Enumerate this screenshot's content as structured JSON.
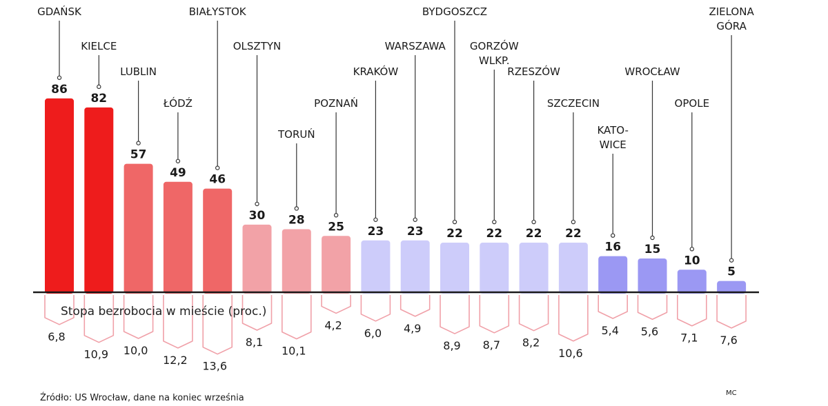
{
  "chart_data": {
    "type": "bar",
    "categories": [
      "GDAŃSK",
      "KIELCE",
      "LUBLIN",
      "ŁÓDŹ",
      "BIAŁYSTOK",
      "OLSZTYN",
      "TORUŃ",
      "POZNAŃ",
      "KRAKÓW",
      "WARSZAWA",
      "BYDGOSZCZ",
      "GORZÓW WLKP.",
      "RZESZÓW",
      "SZCZECIN",
      "KATO-WICE",
      "WROCŁAW",
      "OPOLE",
      "ZIELONA GÓRA"
    ],
    "category_lines": [
      [
        "GDAŃSK"
      ],
      [
        "KIELCE"
      ],
      [
        "LUBLIN"
      ],
      [
        "ŁÓDŹ"
      ],
      [
        "BIAŁYSTOK"
      ],
      [
        "OLSZTYN"
      ],
      [
        "TORUŃ"
      ],
      [
        "POZNAŃ"
      ],
      [
        "KRAKÓW"
      ],
      [
        "WARSZAWA"
      ],
      [
        "BYDGOSZCZ"
      ],
      [
        "GORZÓW",
        "WLKP."
      ],
      [
        "RZESZÓW"
      ],
      [
        "SZCZECIN"
      ],
      [
        "KATO-",
        "WICE"
      ],
      [
        "WROCŁAW"
      ],
      [
        "OPOLE"
      ],
      [
        "ZIELONA",
        "GÓRA"
      ]
    ],
    "series": [
      {
        "values": [
          86,
          82,
          57,
          49,
          46,
          30,
          28,
          25,
          23,
          23,
          22,
          22,
          22,
          22,
          16,
          15,
          10,
          5
        ]
      },
      {
        "values": [
          6.8,
          10.9,
          10.0,
          12.2,
          13.6,
          8.1,
          10.1,
          4.2,
          6.0,
          4.9,
          8.9,
          8.7,
          8.2,
          10.6,
          5.4,
          5.6,
          7.1,
          7.6
        ],
        "labels": [
          "6,8",
          "10,9",
          "10,0",
          "12,2",
          "13,6",
          "8,1",
          "10,1",
          "4,2",
          "6,0",
          "4,9",
          "8,9",
          "8,7",
          "8,2",
          "10,6",
          "5,4",
          "5,6",
          "7,1",
          "7,6"
        ]
      }
    ],
    "bar_colors": [
      "#ee1c1c",
      "#ee1c1c",
      "#ef6767",
      "#ef6767",
      "#ef6767",
      "#f2a2a7",
      "#f2a2a7",
      "#f2a2a7",
      "#cdccfa",
      "#cdccfa",
      "#cdccfa",
      "#cdccfa",
      "#cdccfa",
      "#cdccfa",
      "#9b98f3",
      "#9b98f3",
      "#9b98f3",
      "#9b98f3"
    ],
    "outline_color": "#f0a0a8",
    "lower_axis_label": "Stopa bezrobocia w mieście (proc.)",
    "source": "Źródło: US Wrocław, dane na koniec września",
    "credit": "MC"
  }
}
